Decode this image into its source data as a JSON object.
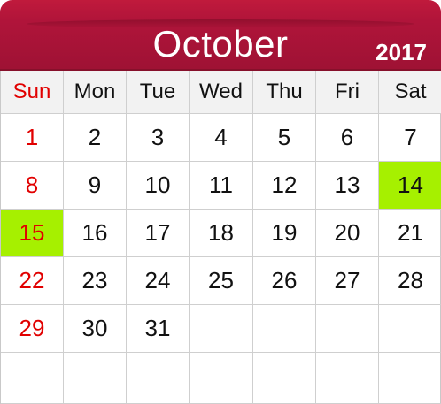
{
  "month": "October",
  "year": "2017",
  "weekdays": [
    "Sun",
    "Mon",
    "Tue",
    "Wed",
    "Thu",
    "Fri",
    "Sat"
  ],
  "weeks": [
    [
      "1",
      "2",
      "3",
      "4",
      "5",
      "6",
      "7"
    ],
    [
      "8",
      "9",
      "10",
      "11",
      "12",
      "13",
      "14"
    ],
    [
      "15",
      "16",
      "17",
      "18",
      "19",
      "20",
      "21"
    ],
    [
      "22",
      "23",
      "24",
      "25",
      "26",
      "27",
      "28"
    ],
    [
      "29",
      "30",
      "31",
      "",
      "",
      "",
      ""
    ],
    [
      "",
      "",
      "",
      "",
      "",
      "",
      ""
    ]
  ],
  "highlighted_days": [
    "14",
    "15"
  ],
  "colors": {
    "header": "#b0143a",
    "sunday": "#e10000",
    "highlight": "#a6f000",
    "weekday_header_bg": "#f2f2f2"
  }
}
